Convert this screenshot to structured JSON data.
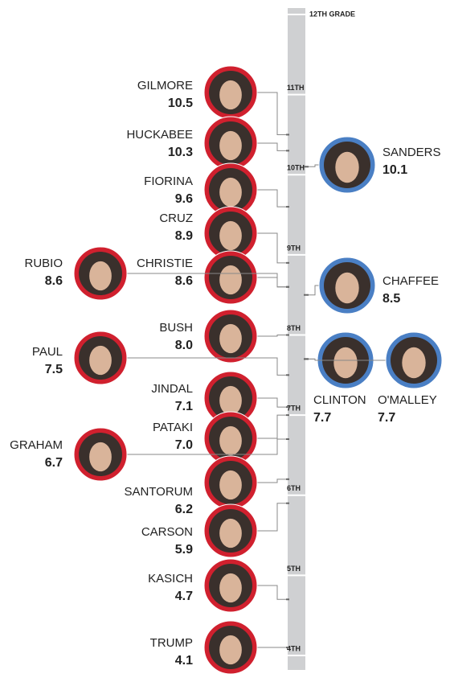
{
  "chart_data": {
    "type": "grade-dots",
    "categories": [
      "GILMORE",
      "HUCKABEE",
      "FIORINA",
      "CRUZ",
      "CHRISTIE",
      "RUBIO",
      "BUSH",
      "PAUL",
      "JINDAL",
      "PATAKI",
      "GRAHAM",
      "SANTORUM",
      "CARSON",
      "KASICH",
      "TRUMP",
      "SANDERS",
      "CHAFFEE",
      "CLINTON",
      "O'MALLEY"
    ],
    "values": [
      10.5,
      10.3,
      9.6,
      8.9,
      8.6,
      8.6,
      8.0,
      7.5,
      7.1,
      7.0,
      6.7,
      6.2,
      5.9,
      4.7,
      4.1,
      10.1,
      8.5,
      7.7,
      7.7
    ],
    "value_labels": [
      "10.5",
      "10.3",
      "9.6",
      "8.9",
      "8.6",
      "8.6",
      "8.0",
      "7.5",
      "7.1",
      "7.0",
      "6.7",
      "6.2",
      "5.9",
      "4.7",
      "4.1",
      "10.1",
      "8.5",
      "7.7",
      "7.7"
    ],
    "colors": [
      "#d0202e",
      "#d0202e",
      "#d0202e",
      "#d0202e",
      "#d0202e",
      "#d0202e",
      "#d0202e",
      "#d0202e",
      "#d0202e",
      "#d0202e",
      "#d0202e",
      "#d0202e",
      "#d0202e",
      "#d0202e",
      "#d0202e",
      "#4a7fc4",
      "#4a7fc4",
      "#4a7fc4",
      "#4a7fc4"
    ],
    "ylim": [
      4,
      12
    ],
    "yticks": [
      {
        "value": 12,
        "label": "12TH GRADE"
      },
      {
        "value": 11,
        "label": "11TH"
      },
      {
        "value": 10,
        "label": "10TH"
      },
      {
        "value": 9,
        "label": "9TH"
      },
      {
        "value": 8,
        "label": "8TH"
      },
      {
        "value": 7,
        "label": "7TH"
      },
      {
        "value": 6,
        "label": "6TH"
      },
      {
        "value": 5,
        "label": "5TH"
      },
      {
        "value": 4,
        "label": "4TH"
      }
    ]
  }
}
